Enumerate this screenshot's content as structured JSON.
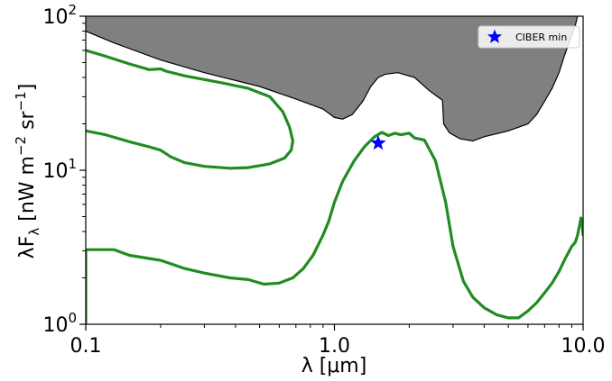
{
  "chart_data": {
    "type": "line",
    "xscale": "log",
    "yscale": "log",
    "xlim": [
      0.1,
      10.0
    ],
    "ylim": [
      1,
      100
    ],
    "xlabel": "λ  [μm]",
    "ylabel": "λF_λ  [nW m^-2 sr^-1]",
    "ylabel_parts": {
      "main": "λF",
      "sub": "λ",
      "units_open": "  [nW m",
      "units_exp1": "−2",
      "units_mid": " sr",
      "units_exp2": "−1",
      "units_close": "]"
    },
    "x_ticks": [
      {
        "value": 0.1,
        "label": "0.1"
      },
      {
        "value": 1.0,
        "label": "1.0"
      },
      {
        "value": 10.0,
        "label": "10.0"
      }
    ],
    "y_ticks": [
      {
        "value": 1,
        "base": "10",
        "exp": "0"
      },
      {
        "value": 10,
        "base": "10",
        "exp": "1"
      },
      {
        "value": 100,
        "base": "10",
        "exp": "2"
      }
    ],
    "grid": false,
    "legend_position": "top-right",
    "colors": {
      "upper_limit_fill": "#808080",
      "upper_limit_edge": "#000000",
      "series_line": "#228b22",
      "marker": "#0000ff"
    },
    "upper_limit_region": [
      [
        0.1,
        80
      ],
      [
        0.13,
        67
      ],
      [
        0.2,
        52
      ],
      [
        0.3,
        43
      ],
      [
        0.5,
        35
      ],
      [
        0.7,
        29
      ],
      [
        0.9,
        25
      ],
      [
        1.0,
        22
      ],
      [
        1.08,
        21.5
      ],
      [
        1.18,
        23
      ],
      [
        1.3,
        28
      ],
      [
        1.4,
        35
      ],
      [
        1.5,
        40
      ],
      [
        1.6,
        42
      ],
      [
        1.8,
        43
      ],
      [
        2.1,
        40
      ],
      [
        2.4,
        33
      ],
      [
        2.6,
        30
      ],
      [
        2.72,
        28.5
      ],
      [
        2.75,
        20
      ],
      [
        2.9,
        17.5
      ],
      [
        3.2,
        16
      ],
      [
        3.6,
        15.5
      ],
      [
        4.0,
        16.5
      ],
      [
        5.0,
        18
      ],
      [
        6.0,
        20
      ],
      [
        6.5,
        23
      ],
      [
        7.0,
        28
      ],
      [
        7.5,
        34
      ],
      [
        8.0,
        43
      ],
      [
        8.4,
        55
      ],
      [
        8.8,
        68
      ],
      [
        9.3,
        87
      ],
      [
        9.5,
        100
      ]
    ],
    "series": [
      {
        "name": "",
        "kind": "loop",
        "points": [
          [
            0.1,
            60
          ],
          [
            0.12,
            55
          ],
          [
            0.15,
            49
          ],
          [
            0.18,
            45
          ],
          [
            0.2,
            45.5
          ],
          [
            0.21,
            44
          ],
          [
            0.25,
            41
          ],
          [
            0.35,
            37
          ],
          [
            0.45,
            34
          ],
          [
            0.55,
            30
          ],
          [
            0.62,
            24
          ],
          [
            0.66,
            19
          ],
          [
            0.68,
            15.5
          ],
          [
            0.67,
            13.5
          ],
          [
            0.63,
            12
          ],
          [
            0.55,
            11
          ],
          [
            0.45,
            10.4
          ],
          [
            0.38,
            10.3
          ],
          [
            0.3,
            10.6
          ],
          [
            0.25,
            11.2
          ],
          [
            0.22,
            12.2
          ],
          [
            0.2,
            13.5
          ],
          [
            0.18,
            14.2
          ],
          [
            0.15,
            15.3
          ],
          [
            0.12,
            17
          ],
          [
            0.1,
            18
          ]
        ]
      },
      {
        "name": "",
        "kind": "curve",
        "points": [
          [
            0.1,
            0.98
          ],
          [
            0.1,
            3.05
          ],
          [
            0.13,
            3.05
          ],
          [
            0.15,
            2.8
          ],
          [
            0.2,
            2.6
          ],
          [
            0.25,
            2.3
          ],
          [
            0.3,
            2.15
          ],
          [
            0.38,
            2.0
          ],
          [
            0.45,
            1.95
          ],
          [
            0.52,
            1.82
          ],
          [
            0.6,
            1.85
          ],
          [
            0.68,
            2.0
          ],
          [
            0.75,
            2.3
          ],
          [
            0.82,
            2.8
          ],
          [
            0.9,
            3.8
          ],
          [
            0.95,
            4.7
          ],
          [
            1.0,
            6.2
          ],
          [
            1.08,
            8.5
          ],
          [
            1.2,
            11.5
          ],
          [
            1.32,
            14.2
          ],
          [
            1.45,
            16.5
          ],
          [
            1.55,
            17.6
          ],
          [
            1.65,
            16.8
          ],
          [
            1.75,
            17.4
          ],
          [
            1.85,
            17.0
          ],
          [
            2.0,
            17.4
          ],
          [
            2.1,
            16.2
          ],
          [
            2.3,
            15.7
          ],
          [
            2.55,
            11.5
          ],
          [
            2.8,
            6.2
          ],
          [
            3.0,
            3.2
          ],
          [
            3.3,
            1.9
          ],
          [
            3.6,
            1.5
          ],
          [
            4.0,
            1.28
          ],
          [
            4.5,
            1.15
          ],
          [
            5.0,
            1.1
          ],
          [
            5.5,
            1.1
          ],
          [
            6.0,
            1.22
          ],
          [
            6.5,
            1.38
          ],
          [
            7.0,
            1.6
          ],
          [
            7.5,
            1.85
          ],
          [
            8.0,
            2.2
          ],
          [
            8.5,
            2.7
          ],
          [
            9.0,
            3.2
          ],
          [
            9.3,
            3.4
          ],
          [
            9.5,
            3.8
          ],
          [
            9.7,
            4.5
          ],
          [
            9.8,
            4.9
          ],
          [
            9.9,
            4.6
          ],
          [
            10.0,
            3.8
          ]
        ]
      }
    ],
    "markers": [
      {
        "label": "CIBER min",
        "x": 1.5,
        "y": 15.0,
        "symbol": "star"
      }
    ]
  }
}
